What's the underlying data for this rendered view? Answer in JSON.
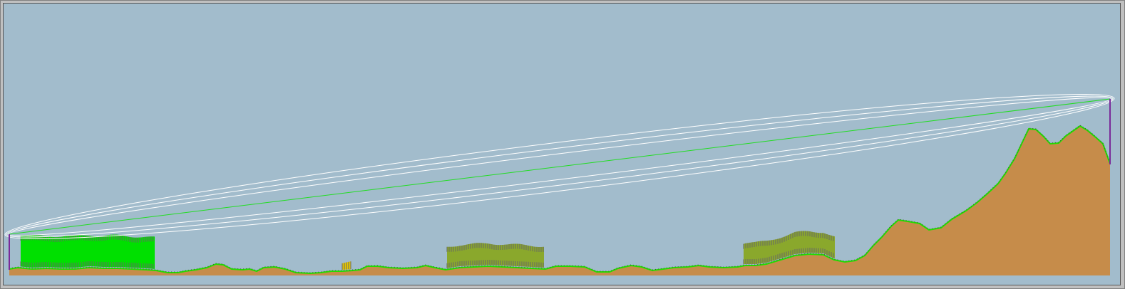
{
  "profile": {
    "colors": {
      "sky": "#a2bccc",
      "terrain": "#c68c4a",
      "ground_line": "#22dd00",
      "los_line": "#22dd22",
      "fresnel": "#ffffff",
      "mast": "#7a2a9a",
      "clutter_bright": "#00e000",
      "clutter_olive": "#8aa82c",
      "clutter_yellow": "#e6c800",
      "crest": "#444444"
    },
    "endpoints": [
      "tx-mast",
      "rx-mast"
    ],
    "clutter_blocks": [
      "clutter-block-1",
      "clutter-block-2",
      "clutter-block-3",
      "clutter-block-4"
    ],
    "fresnel_zones": 3
  }
}
